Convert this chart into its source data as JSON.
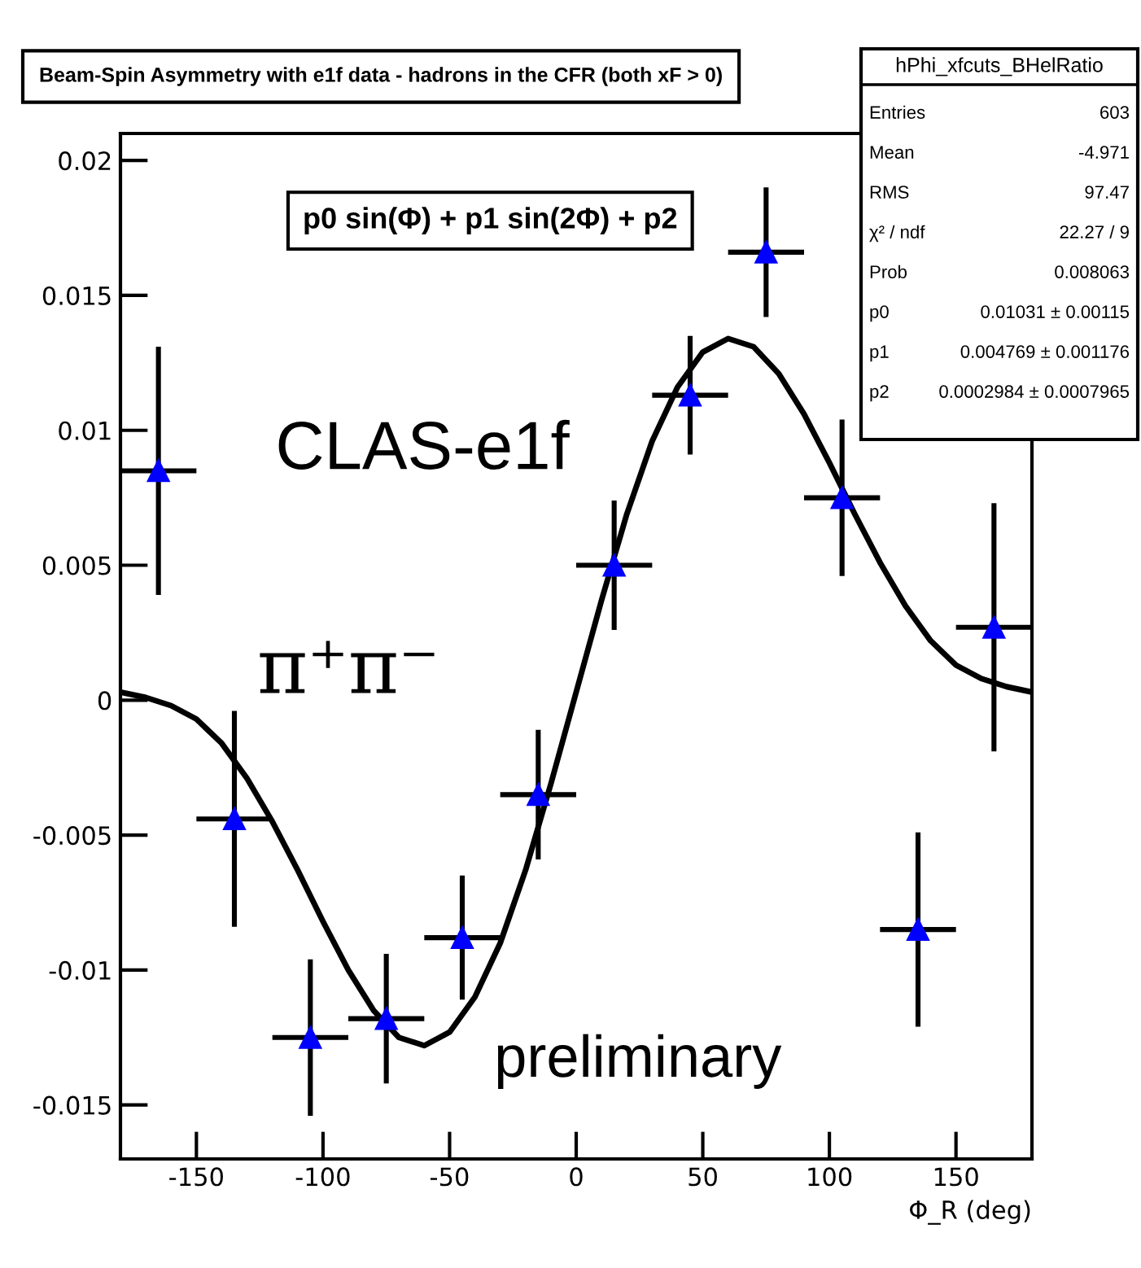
{
  "chart_data": {
    "type": "scatter",
    "title": "Beam-Spin Asymmetry with e1f data - hadrons in the CFR (both xF > 0)",
    "xlabel": "Φ_R (deg)",
    "x": [
      -165,
      -135,
      -105,
      -75,
      -45,
      -15,
      15,
      45,
      75,
      105,
      135,
      165
    ],
    "series": [
      {
        "color": "#0000ff",
        "marker": "triangle",
        "values": [
          0.0085,
          -0.0044,
          -0.0125,
          -0.0118,
          -0.0088,
          -0.0035,
          0.005,
          0.0113,
          0.0166,
          0.0075,
          -0.0085,
          0.0027
        ],
        "errors": [
          0.0046,
          0.004,
          0.0029,
          0.0024,
          0.0023,
          0.0024,
          0.0024,
          0.0022,
          0.0024,
          0.0029,
          0.0036,
          0.0046
        ],
        "xerrors": [
          15,
          15,
          15,
          15,
          15,
          15,
          15,
          15,
          15,
          15,
          15,
          15
        ]
      },
      {
        "type": "line",
        "color": "#000000",
        "marker": "none",
        "line_style": "solid",
        "x": [
          -180,
          -170,
          -160,
          -150,
          -140,
          -130,
          -120,
          -110,
          -100,
          -90,
          -80,
          -70,
          -60,
          -50,
          -40,
          -30,
          -20,
          -10,
          0,
          10,
          20,
          30,
          40,
          50,
          60,
          70,
          80,
          90,
          100,
          110,
          120,
          130,
          140,
          150,
          160,
          170,
          180
        ],
        "values": [
          0.0003,
          0.0001,
          -0.0002,
          -0.0007,
          -0.0016,
          -0.0029,
          -0.0045,
          -0.0063,
          -0.0082,
          -0.01,
          -0.0115,
          -0.0125,
          -0.0128,
          -0.0123,
          -0.011,
          -0.009,
          -0.0063,
          -0.0031,
          0.0003,
          0.0037,
          0.0069,
          0.0096,
          0.0116,
          0.0129,
          0.0134,
          0.0131,
          0.0121,
          0.0106,
          0.0088,
          0.0069,
          0.0051,
          0.0035,
          0.0022,
          0.0013,
          0.0008,
          0.0005,
          0.0003
        ]
      }
    ],
    "xlim": [
      -180,
      180
    ],
    "ylim": [
      -0.017,
      0.021
    ],
    "xticks": [
      -150,
      -100,
      -50,
      0,
      50,
      100,
      150
    ],
    "yticks": [
      -0.015,
      -0.01,
      -0.005,
      0,
      0.005,
      0.01,
      0.015,
      0.02
    ],
    "grid": false,
    "legend": false,
    "annotations": [
      "p0 sin(Φ) + p1 sin(2Φ) + p2",
      "CLAS-e1f",
      "π⁺π⁻",
      "preliminary",
      "hPhi_xfcuts_BHelRatio",
      "Entries",
      "603",
      "Mean",
      "-4.971",
      "RMS",
      "97.47",
      "χ² / ndf",
      "22.27 / 9",
      "Prob",
      "0.008063",
      "p0",
      "0.01031 ± 0.00115",
      "p1",
      "0.004769 ± 0.001176",
      "p2",
      "0.0002984 ± 0.0007965"
    ]
  }
}
